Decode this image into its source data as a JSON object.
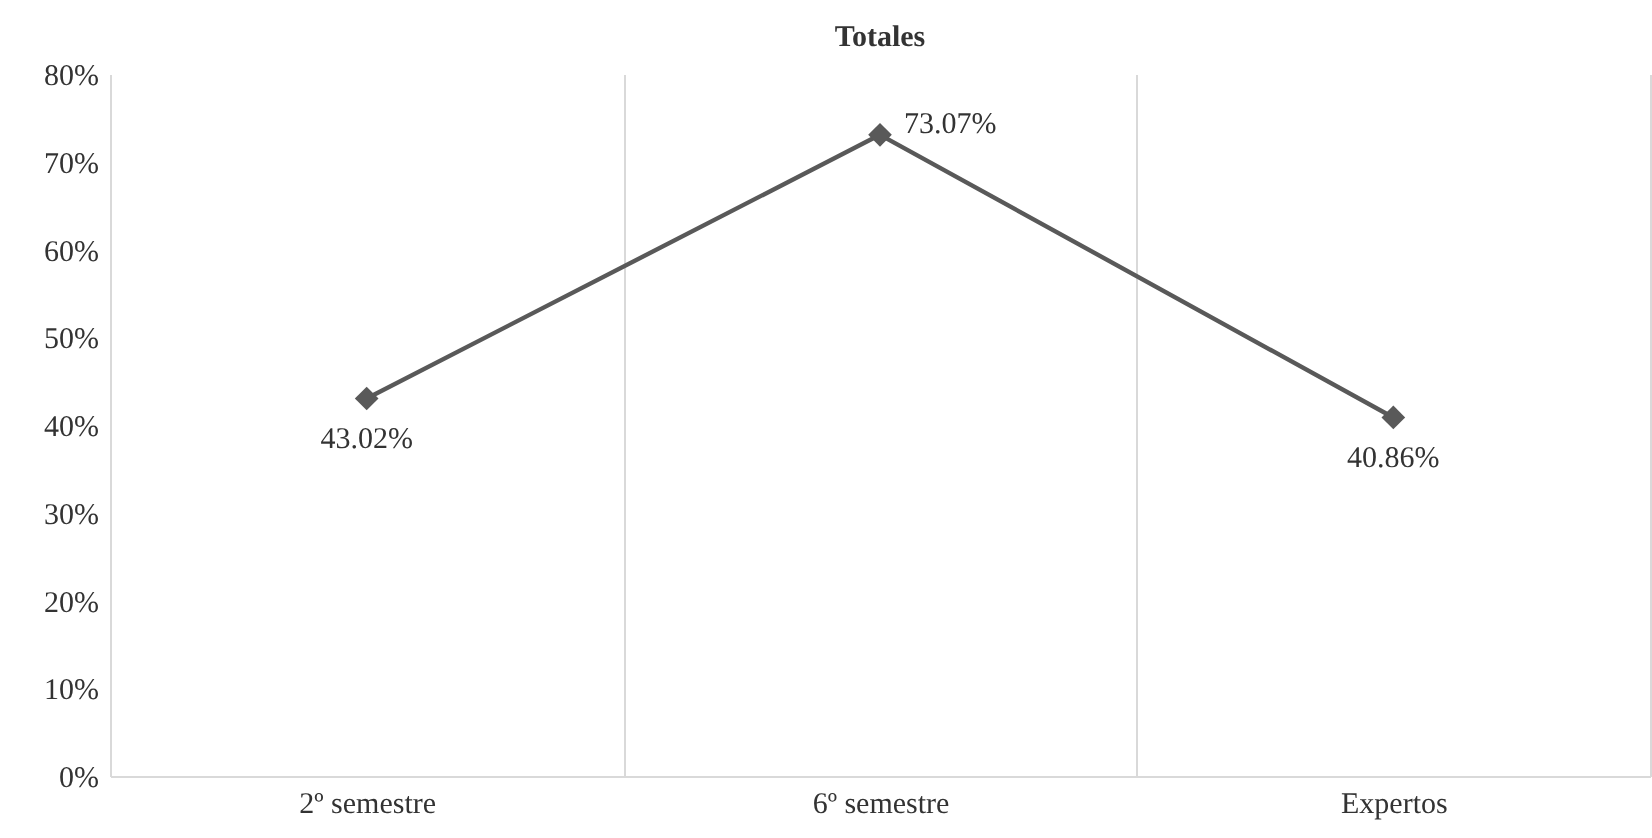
{
  "chart_data": {
    "type": "line",
    "title": "Totales",
    "categories": [
      "2º semestre",
      "6º semestre",
      "Expertos"
    ],
    "series": [
      {
        "color": "#595959",
        "values": [
          43.02,
          73.07,
          40.86
        ],
        "value_labels": [
          "43.02%",
          "73.07%",
          "40.86%"
        ]
      }
    ],
    "ylim": [
      0,
      80
    ],
    "yticks": [
      {
        "value": 0,
        "label": "0%"
      },
      {
        "value": 10,
        "label": "10%"
      },
      {
        "value": 20,
        "label": "20%"
      },
      {
        "value": 30,
        "label": "30%"
      },
      {
        "value": 40,
        "label": "40%"
      },
      {
        "value": 50,
        "label": "50%"
      },
      {
        "value": 60,
        "label": "60%"
      },
      {
        "value": 70,
        "label": "70%"
      },
      {
        "value": 80,
        "label": "80%"
      }
    ],
    "grid": "x",
    "marker": "diamond",
    "line_style": "solid"
  }
}
